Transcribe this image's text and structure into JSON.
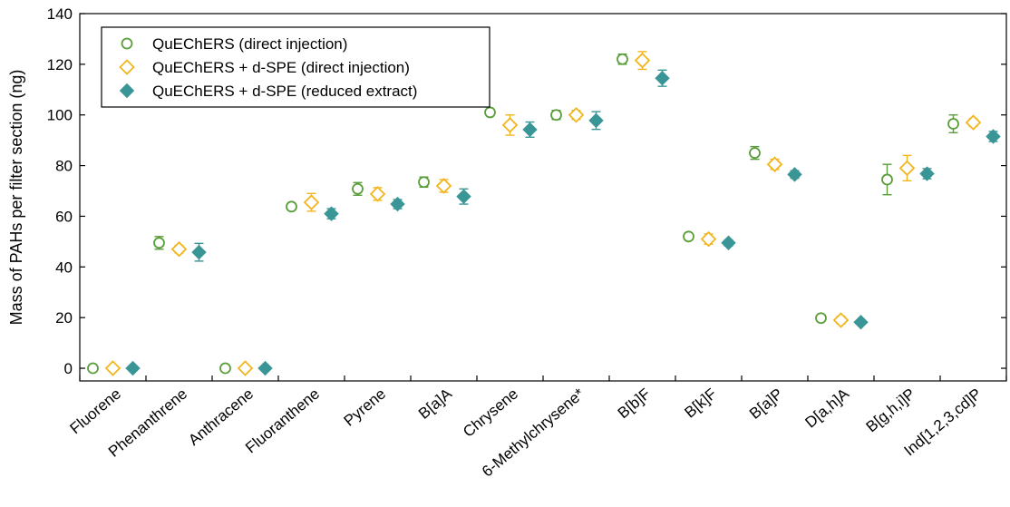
{
  "chart_data": {
    "type": "scatter",
    "ylabel": "Mass of PAHs per filter section (ng)",
    "ylim": [
      -5,
      140
    ],
    "yticks": [
      0,
      20,
      40,
      60,
      80,
      100,
      120,
      140
    ],
    "ytick_labels": [
      "0",
      "20",
      "40",
      "60",
      "80",
      "100",
      "120",
      "140"
    ],
    "categories": [
      "Fluorene",
      "Phenanthrene",
      "Anthracene",
      "Fluoranthene",
      "Pyrene",
      "B[a]A",
      "Chrysene",
      "6-Methylchrysene*",
      "B[b]F",
      "B[k]F",
      "B[a]P",
      "D[a,h]A",
      "B[g,h,i]P",
      "Ind[1,2,3,cd]P"
    ],
    "legend_position": "top-left",
    "series": [
      {
        "name": "QuEChERS (direct injection)",
        "marker": "circle-open",
        "color": "#5a9e3a",
        "values": [
          0,
          49.5,
          0,
          63.8,
          70.8,
          73.5,
          101,
          100,
          122,
          52,
          85,
          19.8,
          74.5,
          96.5
        ],
        "errors": [
          0,
          2.5,
          0,
          1.2,
          2.5,
          2,
          1.2,
          1.8,
          2,
          1.2,
          2.5,
          1.2,
          6,
          3.5
        ]
      },
      {
        "name": "QuEChERS + d-SPE (direct injection)",
        "marker": "diamond-open",
        "color": "#f2b51c",
        "values": [
          0,
          47,
          0,
          65.5,
          68.8,
          72,
          96,
          100,
          121.5,
          51,
          80.5,
          19,
          79,
          97
        ],
        "errors": [
          0,
          1.5,
          0,
          3.5,
          2.5,
          2.5,
          4,
          1.8,
          3.5,
          2,
          2,
          1.5,
          5,
          1.5
        ]
      },
      {
        "name": "QuEChERS + d-SPE (reduced extract)",
        "marker": "diamond-filled",
        "color": "#3a9696",
        "values": [
          0,
          45.8,
          0,
          61,
          64.8,
          67.8,
          94.2,
          97.8,
          114.5,
          49.5,
          76.5,
          18.2,
          76.8,
          91.5
        ],
        "errors": [
          0,
          3.5,
          0,
          2,
          1.8,
          3,
          3,
          3.5,
          3.2,
          1.2,
          1.5,
          0.8,
          2,
          2
        ]
      }
    ]
  }
}
